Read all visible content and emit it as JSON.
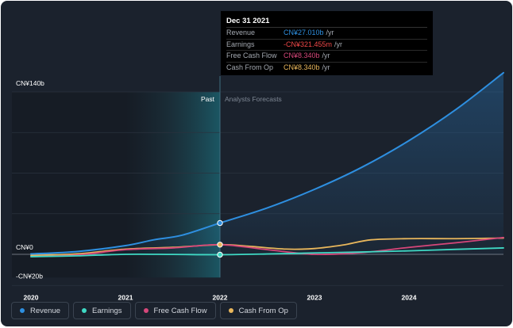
{
  "chart_data": {
    "type": "line",
    "x_ticks": [
      "2020",
      "2021",
      "2022",
      "2023",
      "2024"
    ],
    "y_ticks": [
      "CN¥140b",
      "CN¥0",
      "-CN¥20b"
    ],
    "ylim": [
      -20,
      140
    ],
    "xlim": [
      2020.0,
      2025.0
    ],
    "regions": {
      "past_label": "Past",
      "forecast_label": "Analysts Forecasts",
      "divider_x": 2022.0
    },
    "series": [
      {
        "name": "Revenue",
        "color": "#2e8fe0",
        "area": true,
        "points": [
          [
            2020.0,
            0.3
          ],
          [
            2020.5,
            2.5
          ],
          [
            2021.0,
            7.5
          ],
          [
            2021.3,
            12.5
          ],
          [
            2021.6,
            16.5
          ],
          [
            2022.0,
            27.0
          ],
          [
            2022.5,
            40.0
          ],
          [
            2023.0,
            56.0
          ],
          [
            2023.5,
            75.0
          ],
          [
            2024.0,
            98.0
          ],
          [
            2024.5,
            125.0
          ],
          [
            2025.0,
            156.5
          ]
        ]
      },
      {
        "name": "Earnings",
        "color": "#3fd9c4",
        "area": false,
        "points": [
          [
            2020.0,
            -2.0
          ],
          [
            2020.5,
            -1.3
          ],
          [
            2021.0,
            0.0
          ],
          [
            2021.5,
            -0.1
          ],
          [
            2022.0,
            -0.32
          ],
          [
            2022.5,
            0.3
          ],
          [
            2023.0,
            1.2
          ],
          [
            2023.5,
            2.0
          ],
          [
            2024.0,
            3.0
          ],
          [
            2024.5,
            4.3
          ],
          [
            2025.0,
            5.5
          ]
        ]
      },
      {
        "name": "Free Cash Flow",
        "color": "#d6477a",
        "area": false,
        "points": [
          [
            2020.0,
            -2.0
          ],
          [
            2020.5,
            -0.5
          ],
          [
            2021.0,
            4.0
          ],
          [
            2021.5,
            5.5
          ],
          [
            2022.0,
            8.34
          ],
          [
            2022.5,
            4.0
          ],
          [
            2023.0,
            0.0
          ],
          [
            2023.5,
            1.5
          ],
          [
            2024.0,
            6.0
          ],
          [
            2024.5,
            10.0
          ],
          [
            2025.0,
            14.5
          ]
        ]
      },
      {
        "name": "Cash From Op",
        "color": "#e9b75c",
        "area": false,
        "points": [
          [
            2020.0,
            -1.0
          ],
          [
            2020.5,
            0.5
          ],
          [
            2021.0,
            4.5
          ],
          [
            2021.5,
            6.0
          ],
          [
            2022.0,
            8.34
          ],
          [
            2022.3,
            7.0
          ],
          [
            2022.7,
            4.5
          ],
          [
            2023.0,
            5.0
          ],
          [
            2023.3,
            8.0
          ],
          [
            2023.6,
            12.5
          ],
          [
            2024.0,
            13.5
          ],
          [
            2024.5,
            13.5
          ],
          [
            2025.0,
            14.0
          ]
        ]
      }
    ],
    "highlight_x": 2022.0,
    "tooltip": {
      "title": "Dec 31 2021",
      "rows": [
        {
          "label": "Revenue",
          "value": "CN¥27.010b",
          "unit": "/yr",
          "color": "#2e8fe0"
        },
        {
          "label": "Earnings",
          "value": "-CN¥321.455m",
          "unit": "/yr",
          "color": "#f04848"
        },
        {
          "label": "Free Cash Flow",
          "value": "CN¥8.340b",
          "unit": "/yr",
          "color": "#d6477a"
        },
        {
          "label": "Cash From Op",
          "value": "CN¥8.340b",
          "unit": "/yr",
          "color": "#e9b75c"
        }
      ]
    },
    "legend": [
      "Revenue",
      "Earnings",
      "Free Cash Flow",
      "Cash From Op"
    ]
  }
}
